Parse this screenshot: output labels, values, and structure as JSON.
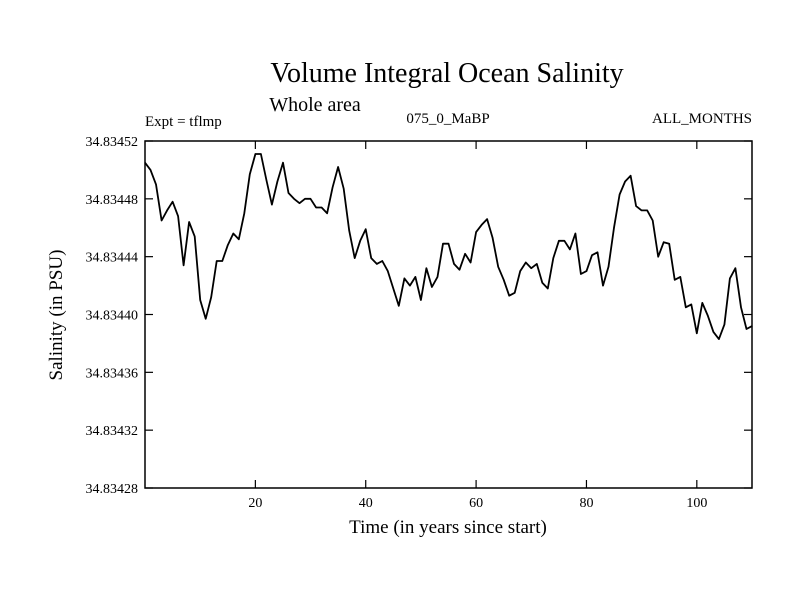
{
  "chart_data": {
    "type": "line",
    "title": "Volume Integral Ocean Salinity",
    "subtitle": "Whole area",
    "left_label": "Expt = tflmp",
    "center_label": "075_0_MaBP",
    "right_label": "ALL_MONTHS",
    "xlabel": "Time (in years since start)",
    "ylabel": "Salinity (in PSU)",
    "xlim": [
      0,
      110
    ],
    "ylim": [
      34.83428,
      34.83452
    ],
    "xticks": [
      20,
      40,
      60,
      80,
      100
    ],
    "yticks": [
      "34.83428",
      "34.83432",
      "34.83436",
      "34.83440",
      "34.83444",
      "34.83448",
      "34.83452"
    ],
    "x": [
      0,
      1,
      2,
      3,
      4,
      5,
      6,
      7,
      8,
      9,
      10,
      11,
      12,
      13,
      14,
      15,
      16,
      17,
      18,
      19,
      20,
      21,
      22,
      23,
      24,
      25,
      26,
      27,
      28,
      29,
      30,
      31,
      32,
      33,
      34,
      35,
      36,
      37,
      38,
      39,
      40,
      41,
      42,
      43,
      44,
      45,
      46,
      47,
      48,
      49,
      50,
      51,
      52,
      53,
      54,
      55,
      56,
      57,
      58,
      59,
      60,
      61,
      62,
      63,
      64,
      65,
      66,
      67,
      68,
      69,
      70,
      71,
      72,
      73,
      74,
      75,
      76,
      77,
      78,
      79,
      80,
      81,
      82,
      83,
      84,
      85,
      86,
      87,
      88,
      89,
      90,
      91,
      92,
      93,
      94,
      95,
      96,
      97,
      98,
      99,
      100,
      101,
      102,
      103,
      104,
      105,
      106,
      107,
      108,
      109,
      110
    ],
    "values": [
      34.834505,
      34.8345,
      34.83449,
      34.834465,
      34.834472,
      34.834478,
      34.834468,
      34.834434,
      34.834464,
      34.834454,
      34.83441,
      34.834397,
      34.834412,
      34.834437,
      34.834437,
      34.834448,
      34.834456,
      34.834452,
      34.83447,
      34.834497,
      34.834511,
      34.834511,
      34.834493,
      34.834476,
      34.834492,
      34.834505,
      34.834484,
      34.83448,
      34.834477,
      34.83448,
      34.83448,
      34.834474,
      34.834474,
      34.83447,
      34.834488,
      34.834502,
      34.834487,
      34.834458,
      34.834439,
      34.834451,
      34.834459,
      34.834439,
      34.834435,
      34.834437,
      34.83443,
      34.834418,
      34.834406,
      34.834425,
      34.83442,
      34.834426,
      34.83441,
      34.834432,
      34.834419,
      34.834426,
      34.834449,
      34.834449,
      34.834435,
      34.834431,
      34.834442,
      34.834436,
      34.834457,
      34.834462,
      34.834466,
      34.834453,
      34.834433,
      34.834424,
      34.834413,
      34.834415,
      34.83443,
      34.834436,
      34.834432,
      34.834435,
      34.834422,
      34.834418,
      34.834439,
      34.834451,
      34.834451,
      34.834445,
      34.834456,
      34.834428,
      34.83443,
      34.834441,
      34.834443,
      34.83442,
      34.834433,
      34.83446,
      34.834483,
      34.834492,
      34.834496,
      34.834475,
      34.834472,
      34.834472,
      34.834465,
      34.83444,
      34.83445,
      34.834449,
      34.834424,
      34.834426,
      34.834405,
      34.834407,
      34.834387,
      34.834408,
      34.834399,
      34.834388,
      34.834383,
      34.834393,
      34.834425,
      34.834432,
      34.834405,
      34.83439,
      34.834392
    ]
  }
}
